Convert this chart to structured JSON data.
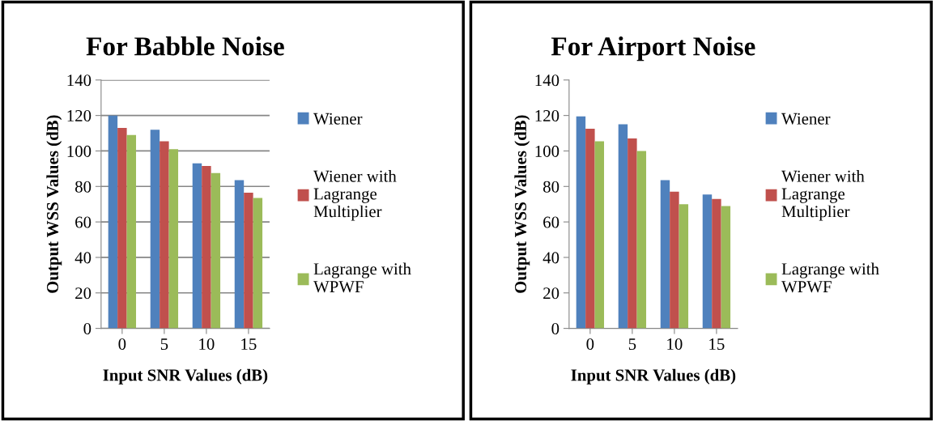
{
  "chart_data": [
    {
      "type": "bar",
      "title": "For Babble Noise",
      "xlabel": "Input SNR Values (dB)",
      "ylabel": "Output WSS Values (dB)",
      "categories": [
        "0",
        "5",
        "10",
        "15"
      ],
      "ylim": [
        0,
        140
      ],
      "yticks": [
        0,
        20,
        40,
        60,
        80,
        100,
        120,
        140
      ],
      "grid": "y",
      "legend": "right",
      "series": [
        {
          "name": "Wiener",
          "color": "#4f81bd",
          "values": [
            120,
            112,
            93,
            83.5
          ]
        },
        {
          "name": "Wiener with Lagrange Multiplier",
          "color": "#c0504d",
          "values": [
            113,
            105.5,
            91.5,
            76.5
          ]
        },
        {
          "name": "Lagrange with WPWF",
          "color": "#9bbb59",
          "values": [
            109,
            101,
            87.5,
            73.5
          ]
        }
      ]
    },
    {
      "type": "bar",
      "title": "For Airport Noise",
      "xlabel": "Input SNR Values (dB)",
      "ylabel": "Output WSS Values (dB)",
      "categories": [
        "0",
        "5",
        "10",
        "15"
      ],
      "ylim": [
        0,
        140
      ],
      "yticks": [
        0,
        20,
        40,
        60,
        80,
        100,
        120,
        140
      ],
      "grid": false,
      "legend": "right",
      "series": [
        {
          "name": "Wiener",
          "color": "#4f81bd",
          "values": [
            119.5,
            115,
            83.5,
            75.5
          ]
        },
        {
          "name": "Wiener with Lagrange Multiplier",
          "color": "#c0504d",
          "values": [
            112.5,
            107,
            77,
            73
          ]
        },
        {
          "name": "Lagrange with WPWF",
          "color": "#9bbb59",
          "values": [
            105.5,
            100,
            70,
            69
          ]
        }
      ]
    }
  ]
}
